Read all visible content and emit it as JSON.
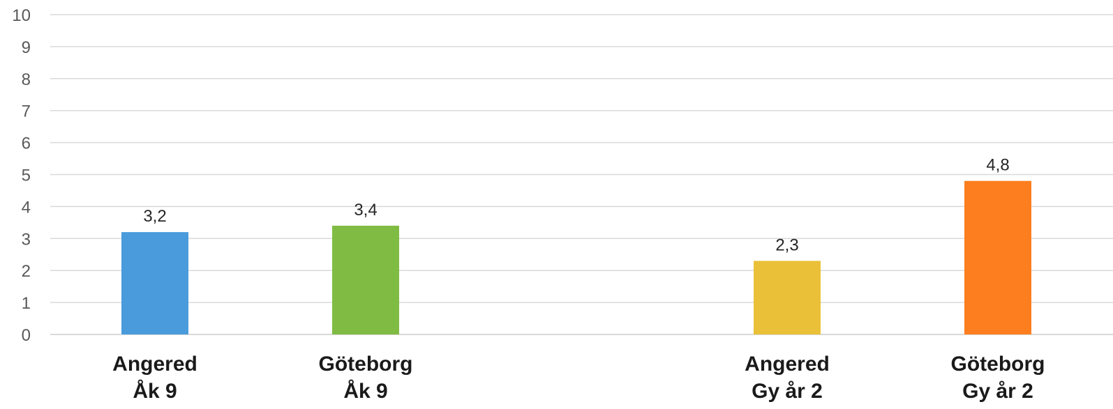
{
  "chart_data": {
    "type": "bar",
    "categories": [
      [
        "Angered",
        "Åk 9"
      ],
      [
        "Göteborg",
        "Åk 9"
      ],
      [
        "Angered",
        "Gy år 2"
      ],
      [
        "Göteborg",
        "Gy år 2"
      ]
    ],
    "values": [
      3.2,
      3.4,
      2.3,
      4.8
    ],
    "data_labels": [
      "3,2",
      "3,4",
      "2,3",
      "4,8"
    ],
    "colors": [
      "#4a9bdc",
      "#80bc44",
      "#e9c038",
      "#fd7e1e"
    ],
    "ylim": [
      0,
      10
    ],
    "yticks": [
      "0",
      "1",
      "2",
      "3",
      "4",
      "5",
      "6",
      "7",
      "8",
      "9",
      "10"
    ],
    "title": "",
    "xlabel": "",
    "ylabel": "",
    "grid": true,
    "legend": "none"
  }
}
